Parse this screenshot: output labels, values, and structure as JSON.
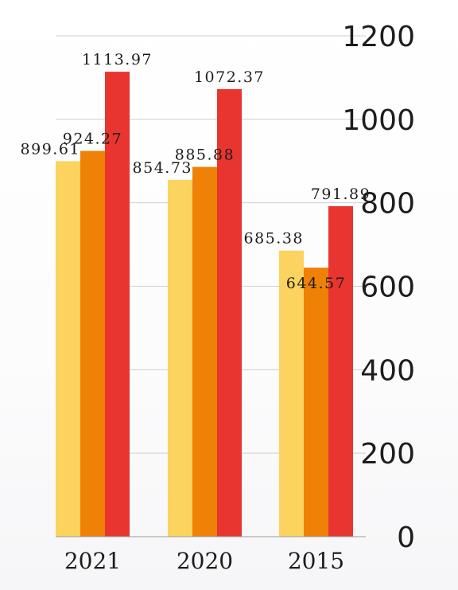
{
  "chart_data": {
    "type": "bar",
    "categories": [
      "2021",
      "2020",
      "2015"
    ],
    "series": [
      {
        "values": [
          899.61,
          854.73,
          685.38
        ],
        "color": "#fbd35e"
      },
      {
        "values": [
          924.27,
          885.88,
          644.57
        ],
        "color": "#ee8106"
      },
      {
        "values": [
          1113.97,
          1072.37,
          791.89
        ],
        "color": "#e83530"
      }
    ],
    "data_labels": [
      [
        "899.61",
        "854.73",
        "685.38"
      ],
      [
        "924.27",
        "885.88",
        "644.57"
      ],
      [
        "1113.97",
        "1072.37",
        "791.89"
      ]
    ],
    "yticks": [
      "0",
      "200",
      "400",
      "600",
      "800",
      "1000",
      "1200"
    ],
    "ylim": [
      0,
      1200
    ],
    "y_axis_side": "right",
    "grid": true,
    "gridline_color": "#cfcfcf",
    "title": "",
    "xlabel": "",
    "ylabel": ""
  }
}
